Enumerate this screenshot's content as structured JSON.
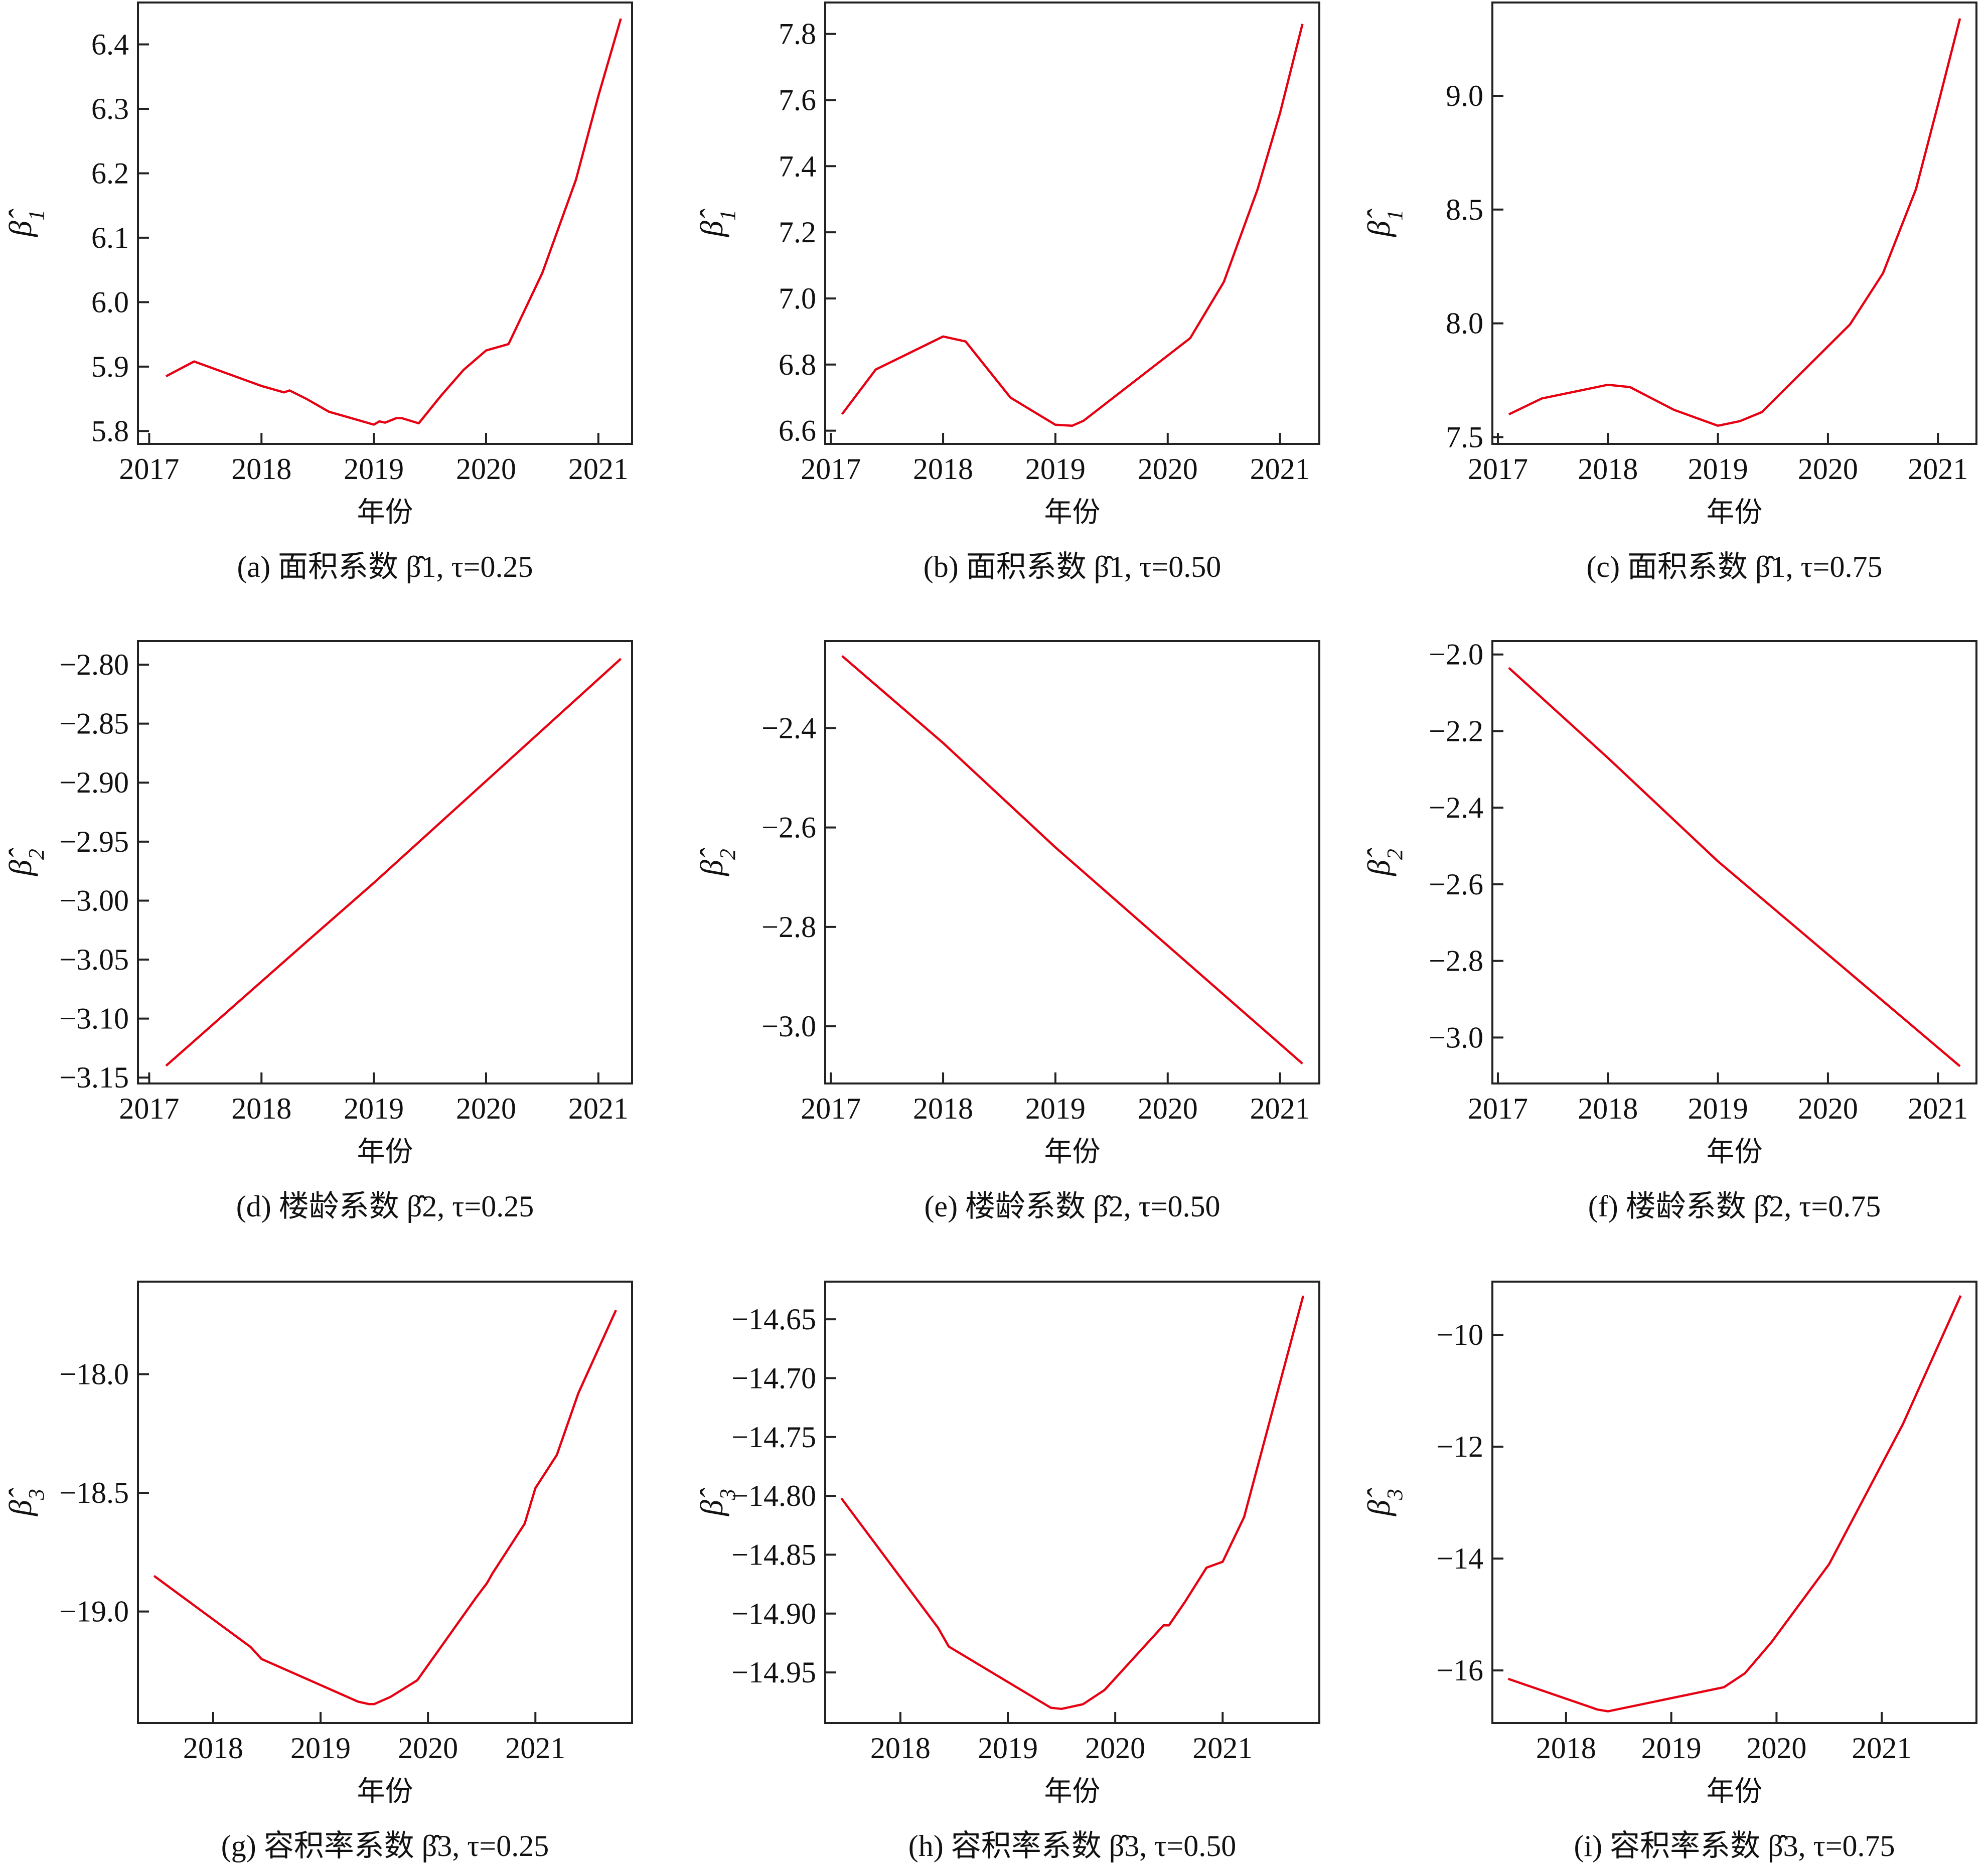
{
  "colors": {
    "line": "#e60012",
    "axis": "#222222"
  },
  "chart_data": [
    {
      "id": "a",
      "type": "line",
      "xlabel": "年份",
      "ylabel": "β̂1",
      "caption": "(a) 面积系数 β̂1, τ=0.25",
      "xticks": [
        2017,
        2018,
        2019,
        2020,
        2021
      ],
      "xlim": [
        2016.9,
        2021.3
      ],
      "yticks": [
        "5.8",
        "5.9",
        "6.0",
        "6.1",
        "6.2",
        "6.3",
        "6.4"
      ],
      "ylim": [
        5.78,
        6.465
      ],
      "x": [
        2017.15,
        2017.4,
        2018.0,
        2018.2,
        2018.25,
        2018.4,
        2018.6,
        2018.8,
        2019.0,
        2019.05,
        2019.1,
        2019.2,
        2019.25,
        2019.4,
        2019.6,
        2019.8,
        2020.0,
        2020.2,
        2020.5,
        2020.8,
        2021.0,
        2021.2
      ],
      "y": [
        5.885,
        5.908,
        5.87,
        5.86,
        5.863,
        5.85,
        5.83,
        5.82,
        5.81,
        5.815,
        5.813,
        5.82,
        5.82,
        5.812,
        5.855,
        5.895,
        5.925,
        5.935,
        6.045,
        6.19,
        6.32,
        6.44
      ]
    },
    {
      "id": "b",
      "type": "line",
      "xlabel": "年份",
      "ylabel": "β̂1",
      "caption": "(b) 面积系数 β̂1, τ=0.50",
      "xticks": [
        2017,
        2018,
        2019,
        2020,
        2021
      ],
      "xlim": [
        2016.95,
        2021.35
      ],
      "yticks": [
        "6.6",
        "6.8",
        "7.0",
        "7.2",
        "7.4",
        "7.6",
        "7.8"
      ],
      "ylim": [
        6.56,
        7.895
      ],
      "x": [
        2017.1,
        2017.4,
        2018.0,
        2018.2,
        2018.6,
        2019.0,
        2019.15,
        2019.25,
        2020.2,
        2020.5,
        2020.8,
        2021.0,
        2021.2
      ],
      "y": [
        6.65,
        6.785,
        6.885,
        6.87,
        6.7,
        6.618,
        6.615,
        6.63,
        6.88,
        7.05,
        7.33,
        7.56,
        7.83
      ]
    },
    {
      "id": "c",
      "type": "line",
      "xlabel": "年份",
      "ylabel": "β̂1",
      "caption": "(c) 面积系数 β̂1, τ=0.75",
      "xticks": [
        2017,
        2018,
        2019,
        2020,
        2021
      ],
      "xlim": [
        2016.95,
        2021.35
      ],
      "yticks": [
        "7.5",
        "8.0",
        "8.5",
        "9.0"
      ],
      "ylim": [
        7.47,
        9.41
      ],
      "x": [
        2017.1,
        2017.4,
        2018.0,
        2018.2,
        2018.6,
        2019.0,
        2019.2,
        2019.4,
        2020.2,
        2020.5,
        2020.8,
        2021.0,
        2021.2
      ],
      "y": [
        7.6,
        7.67,
        7.73,
        7.72,
        7.62,
        7.55,
        7.57,
        7.61,
        7.995,
        8.22,
        8.59,
        8.96,
        9.34
      ]
    },
    {
      "id": "d",
      "type": "line",
      "xlabel": "年份",
      "ylabel": "β̂2",
      "caption": "(d)  楼龄系数 β̂2, τ=0.25",
      "xticks": [
        2017,
        2018,
        2019,
        2020,
        2021
      ],
      "xlim": [
        2016.9,
        2021.3
      ],
      "yticks": [
        "−3.15",
        "−3.10",
        "−3.05",
        "−3.00",
        "−2.95",
        "−2.90",
        "−2.85",
        "−2.80"
      ],
      "ylim": [
        -3.155,
        -2.78
      ],
      "x": [
        2017.15,
        2018.4,
        2019.0,
        2021.2
      ],
      "y": [
        -3.14,
        -3.035,
        -2.985,
        -2.795
      ]
    },
    {
      "id": "e",
      "type": "line",
      "xlabel": "年份",
      "ylabel": "β̂2",
      "caption": "(e)  楼龄系数 β̂2, τ=0.50",
      "xticks": [
        2017,
        2018,
        2019,
        2020,
        2021
      ],
      "xlim": [
        2016.95,
        2021.35
      ],
      "yticks": [
        "−3.0",
        "−2.8",
        "−2.6",
        "−2.4"
      ],
      "ylim": [
        -3.115,
        -2.225
      ],
      "x": [
        2017.1,
        2018.0,
        2019.0,
        2021.2
      ],
      "y": [
        -2.255,
        -2.43,
        -2.64,
        -3.075
      ]
    },
    {
      "id": "f",
      "type": "line",
      "xlabel": "年份",
      "ylabel": "β̂2",
      "caption": "(f)  楼龄系数 β̂2, τ=0.75",
      "xticks": [
        2017,
        2018,
        2019,
        2020,
        2021
      ],
      "xlim": [
        2016.95,
        2021.35
      ],
      "yticks": [
        "−3.0",
        "−2.8",
        "−2.6",
        "−2.4",
        "−2.2",
        "−2.0"
      ],
      "ylim": [
        -3.12,
        -1.965
      ],
      "x": [
        2017.1,
        2018.0,
        2019.0,
        2021.2
      ],
      "y": [
        -2.035,
        -2.27,
        -2.54,
        -3.075
      ]
    },
    {
      "id": "g",
      "type": "line",
      "xlabel": "年份",
      "ylabel": "β̂3",
      "caption": "(g)  容积率系数 β̂3,  τ=0.25",
      "xticks": [
        2018,
        2019,
        2020,
        2021
      ],
      "xlim": [
        2017.3,
        2021.9
      ],
      "yticks": [
        "−19.0",
        "−18.5",
        "−18.0"
      ],
      "ylim": [
        -19.47,
        -17.61
      ],
      "x": [
        2017.45,
        2018.35,
        2018.45,
        2019.35,
        2019.45,
        2019.5,
        2019.65,
        2019.9,
        2020.45,
        2020.55,
        2020.6,
        2020.9,
        2021.0,
        2021.2,
        2021.4,
        2021.75
      ],
      "y": [
        -18.85,
        -19.15,
        -19.2,
        -19.38,
        -19.39,
        -19.39,
        -19.36,
        -19.29,
        -18.94,
        -18.88,
        -18.84,
        -18.63,
        -18.48,
        -18.34,
        -18.08,
        -17.73
      ]
    },
    {
      "id": "h",
      "type": "line",
      "xlabel": "年份",
      "ylabel": "β̂3",
      "caption": "(h)  容积率系数 β̂3,  τ=0.50",
      "xticks": [
        2018,
        2019,
        2020,
        2021
      ],
      "xlim": [
        2017.3,
        2021.9
      ],
      "yticks": [
        "−14.95",
        "−14.90",
        "−14.85",
        "−14.80",
        "−14.75",
        "−14.70",
        "−14.65"
      ],
      "ylim": [
        -14.993,
        -14.618
      ],
      "x": [
        2017.45,
        2018.35,
        2018.45,
        2019.4,
        2019.5,
        2019.7,
        2019.9,
        2020.45,
        2020.5,
        2020.65,
        2020.85,
        2021.0,
        2021.2,
        2021.75
      ],
      "y": [
        -14.802,
        -14.912,
        -14.928,
        -14.98,
        -14.981,
        -14.977,
        -14.965,
        -14.91,
        -14.91,
        -14.89,
        -14.861,
        -14.856,
        -14.818,
        -14.63
      ]
    },
    {
      "id": "i",
      "type": "line",
      "xlabel": "年份",
      "ylabel": "β̂3",
      "caption": "(i)  容积率系数 β̂3,  τ=0.75",
      "xticks": [
        2018,
        2019,
        2020,
        2021
      ],
      "xlim": [
        2017.3,
        2021.9
      ],
      "yticks": [
        "−16",
        "−14",
        "−12",
        "−10"
      ],
      "ylim": [
        -16.94,
        -9.05
      ],
      "x": [
        2017.45,
        2018.3,
        2018.4,
        2019.5,
        2019.7,
        2019.95,
        2020.5,
        2021.2,
        2021.75
      ],
      "y": [
        -16.15,
        -16.7,
        -16.73,
        -16.3,
        -16.05,
        -15.5,
        -14.1,
        -11.6,
        -9.3
      ]
    }
  ]
}
